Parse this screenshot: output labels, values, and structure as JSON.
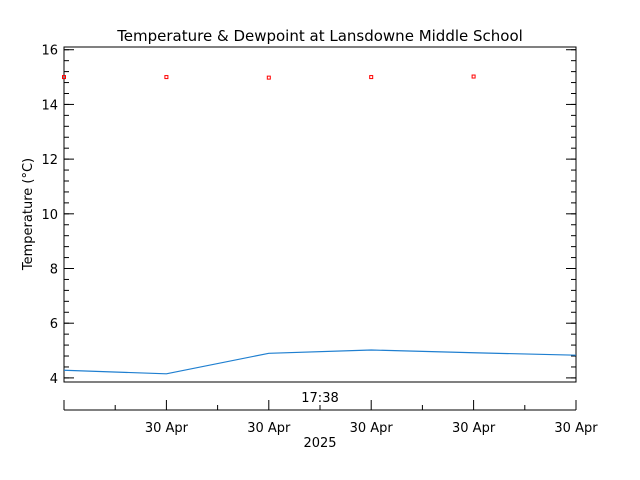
{
  "chart_data": {
    "type": "line",
    "title": "Temperature & Dewpoint at Lansdowne Middle School",
    "xlabel": "2025",
    "ylabel": "Temperature (°C)",
    "time_label": "17:38",
    "ylim": [
      3.85,
      16.1
    ],
    "y_ticks": [
      "4",
      "6",
      "8",
      "10",
      "12",
      "14",
      "16"
    ],
    "x_range": [
      0,
      5
    ],
    "x_tick_labels": [
      "30 Apr",
      "30 Apr",
      "30 Apr",
      "30 Apr",
      "30 Apr"
    ],
    "x_ticks": [
      1,
      2,
      3,
      4,
      5
    ],
    "series": [
      {
        "color": "#ff0000",
        "style": "points",
        "x": [
          0,
          1,
          2,
          3,
          4
        ],
        "y": [
          15.0,
          15.0,
          14.98,
          15.0,
          15.02
        ]
      },
      {
        "color": "#1f7fd0",
        "style": "line",
        "x": [
          0,
          1,
          2,
          3,
          4,
          5
        ],
        "y": [
          4.28,
          4.15,
          4.9,
          5.02,
          4.92,
          4.83
        ]
      }
    ]
  }
}
